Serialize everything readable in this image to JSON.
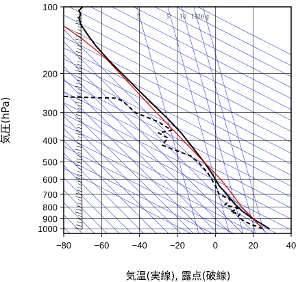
{
  "chart_data": {
    "type": "line",
    "title": "",
    "xlabel": "気温(実線), 露点(破線)",
    "ylabel": "気圧(hPa)",
    "x_axis": {
      "range": [
        -80,
        40
      ],
      "ticks": [
        -80,
        -60,
        -40,
        -20,
        0,
        20,
        40
      ],
      "tick_labels": [
        "−80",
        "−60",
        "−40",
        "−20",
        "0",
        "20",
        "40"
      ]
    },
    "y_axis": {
      "scale": "log",
      "range": [
        1050,
        100
      ],
      "ticks": [
        100,
        200,
        300,
        400,
        500,
        600,
        700,
        800,
        900,
        1000
      ],
      "tick_labels": [
        "100",
        "200",
        "300",
        "400",
        "500",
        "600",
        "700",
        "800",
        "900",
        "1000"
      ]
    },
    "mixing_ratio_labels": [
      "1",
      "5",
      "10",
      "15",
      "20",
      "g"
    ],
    "grid": true,
    "colors": {
      "temperature": "#000000",
      "dewpoint": "#000000",
      "parcel": "#e00000",
      "guides": "#3344dd",
      "grid": "#000000"
    },
    "series": [
      {
        "key": "temperature",
        "style": "solid",
        "points": [
          [
            28.5,
            1000
          ],
          [
            26,
            970
          ],
          [
            22,
            925
          ],
          [
            18,
            880
          ],
          [
            14,
            830
          ],
          [
            10,
            770
          ],
          [
            6,
            700
          ],
          [
            2,
            640
          ],
          [
            -2,
            560
          ],
          [
            -6,
            500
          ],
          [
            -12,
            430
          ],
          [
            -18,
            370
          ],
          [
            -25,
            320
          ],
          [
            -32,
            280
          ],
          [
            -40,
            240
          ],
          [
            -48,
            205
          ],
          [
            -56,
            175
          ],
          [
            -63,
            150
          ],
          [
            -67,
            135
          ],
          [
            -71,
            120
          ],
          [
            -72,
            112
          ],
          [
            -71,
            108
          ],
          [
            -72,
            104
          ],
          [
            -70,
            100
          ]
        ]
      },
      {
        "key": "dewpoint",
        "style": "dashed",
        "points": [
          [
            25,
            1000
          ],
          [
            18,
            950
          ],
          [
            14,
            910
          ],
          [
            12,
            880
          ],
          [
            13,
            860
          ],
          [
            8,
            840
          ],
          [
            12,
            810
          ],
          [
            5,
            780
          ],
          [
            8,
            740
          ],
          [
            2,
            700
          ],
          [
            0,
            640
          ],
          [
            -4,
            560
          ],
          [
            -9,
            500
          ],
          [
            -13,
            470
          ],
          [
            -22,
            440
          ],
          [
            -28,
            420
          ],
          [
            -25,
            390
          ],
          [
            -30,
            370
          ],
          [
            -23,
            360
          ],
          [
            -30,
            330
          ],
          [
            -42,
            300
          ],
          [
            -48,
            270
          ],
          [
            -52,
            258
          ],
          [
            -68,
            256
          ],
          [
            -76,
            255
          ],
          [
            -80,
            253
          ]
        ]
      },
      {
        "key": "parcel",
        "style": "solid",
        "points": [
          [
            25,
            1000
          ],
          [
            20,
            900
          ],
          [
            14,
            800
          ],
          [
            9,
            700
          ],
          [
            3,
            600
          ],
          [
            -6,
            500
          ],
          [
            -17,
            400
          ],
          [
            -31,
            300
          ],
          [
            -48,
            210
          ],
          [
            -58,
            170
          ],
          [
            -70,
            140
          ],
          [
            -80,
            122
          ]
        ]
      }
    ]
  }
}
